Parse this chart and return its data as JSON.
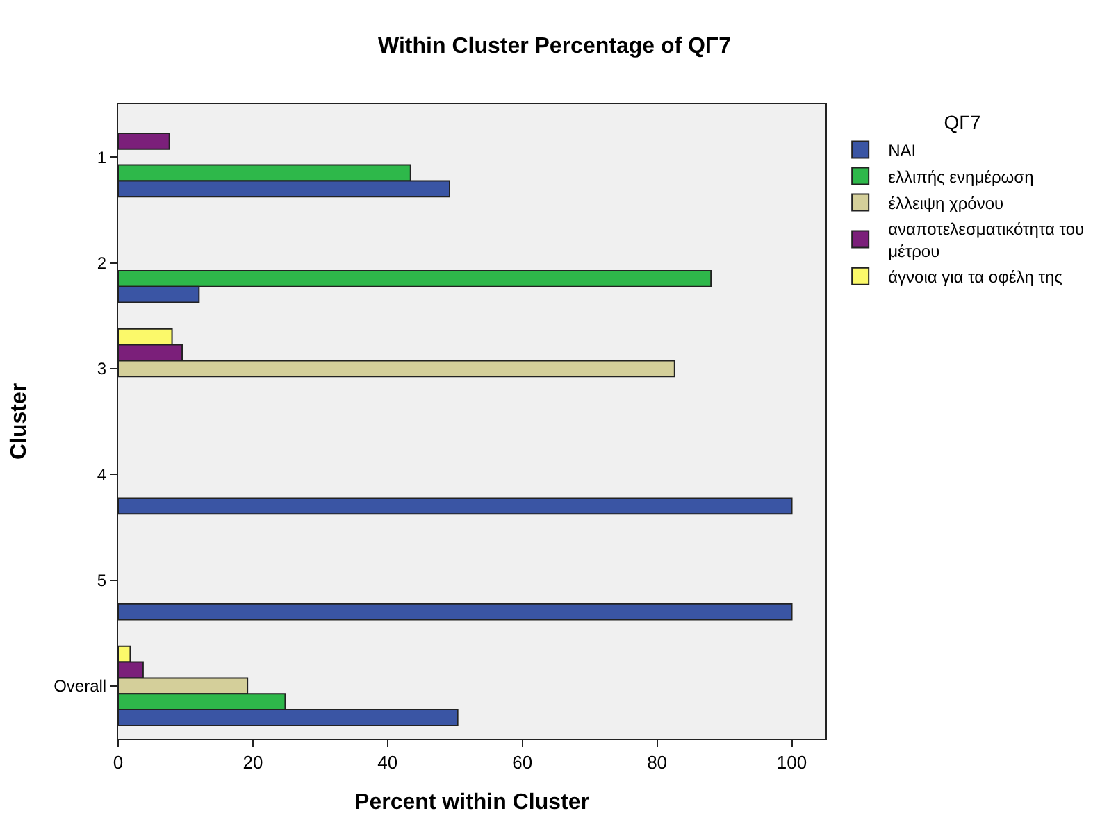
{
  "chart_data": {
    "type": "bar",
    "orientation": "horizontal",
    "title": "Within Cluster Percentage of QΓ7",
    "xlabel": "Percent within Cluster",
    "ylabel": "Cluster",
    "legend_title": "QΓ7",
    "categories": [
      "1",
      "2",
      "3",
      "4",
      "5",
      "Overall"
    ],
    "series": [
      {
        "name": "NAI",
        "color": "#3a55a4",
        "values": [
          49.2,
          12.0,
          null,
          100,
          100,
          50.4
        ]
      },
      {
        "name": "ελλιπής ενημέρωση",
        "color": "#2eb84a",
        "values": [
          43.4,
          88.0,
          null,
          null,
          null,
          24.8
        ]
      },
      {
        "name": "έλλειψη χρόνου",
        "color": "#d4cf9a",
        "values": [
          null,
          null,
          82.6,
          null,
          null,
          19.2
        ]
      },
      {
        "name": "αναποτελεσματικότητα του μέτρου",
        "color": "#7b1f7a",
        "values": [
          7.6,
          null,
          9.5,
          null,
          null,
          3.7
        ]
      },
      {
        "name": "άγνοια για τα οφέλη της",
        "color": "#fbf96a",
        "values": [
          null,
          null,
          8.0,
          null,
          null,
          1.8
        ]
      }
    ],
    "xlim": [
      0,
      105
    ],
    "xticks": [
      0,
      20,
      40,
      60,
      80,
      100
    ],
    "grid": false,
    "legend": "right"
  }
}
